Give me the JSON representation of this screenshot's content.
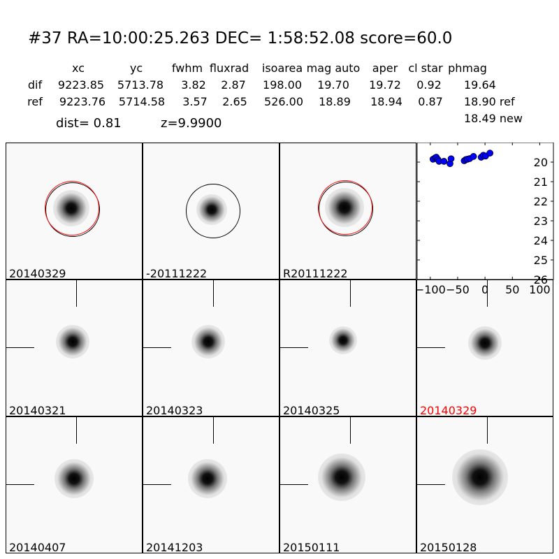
{
  "title": "#37   RA=10:00:25.263 DEC= 1:58:52.08      score=60.0",
  "table": {
    "columns": [
      "xc",
      "yc",
      "fwhm",
      "fluxrad",
      "isoarea",
      "mag auto",
      "aper",
      "cl star",
      "phmag"
    ],
    "rows": [
      {
        "label": "dif",
        "values": [
          "9223.85",
          "5713.78",
          "3.82",
          "2.87",
          "198.00",
          "19.70",
          "19.72",
          "0.92",
          "19.64"
        ]
      },
      {
        "label": "ref",
        "values": [
          "9223.76",
          "5714.58",
          "3.57",
          "2.65",
          "526.00",
          "18.89",
          "18.94",
          "0.87",
          "18.90 ref"
        ]
      }
    ],
    "extra": "18.49 new"
  },
  "dist": "dist=  0.81",
  "z": "z=9.9900",
  "stamps": [
    {
      "label": "20140329",
      "color": "#000000"
    },
    {
      "label": "-20111222",
      "color": "#000000"
    },
    {
      "label": "R20111222",
      "color": "#000000"
    },
    {
      "label": "20140321",
      "color": "#000000"
    },
    {
      "label": "20140323",
      "color": "#000000"
    },
    {
      "label": "20140325",
      "color": "#000000"
    },
    {
      "label": "20140329",
      "color": "#ff0000"
    },
    {
      "label": "20140407",
      "color": "#000000"
    },
    {
      "label": "20141203",
      "color": "#000000"
    },
    {
      "label": "20150111",
      "color": "#000000"
    },
    {
      "label": "20150128",
      "color": "#000000"
    }
  ],
  "chart_data": {
    "type": "scatter",
    "xlim": [
      -124,
      125
    ],
    "ylim": [
      26,
      19
    ],
    "y_inverted": true,
    "xticks": [
      -100,
      -50,
      0,
      50,
      100
    ],
    "yticks": [
      20,
      21,
      22,
      23,
      24,
      25,
      26
    ],
    "marker_color": "#0000ff",
    "points": [
      [
        -95,
        19.85
      ],
      [
        -91,
        19.78
      ],
      [
        -89,
        19.75
      ],
      [
        -86,
        19.87
      ],
      [
        -84,
        19.96
      ],
      [
        -75,
        19.96
      ],
      [
        -64,
        20.08
      ],
      [
        -62,
        19.83
      ],
      [
        -38,
        19.93
      ],
      [
        -35,
        19.87
      ],
      [
        -32,
        19.85
      ],
      [
        -28,
        19.82
      ],
      [
        -21,
        19.71
      ],
      [
        -7,
        19.75
      ],
      [
        -3,
        19.65
      ],
      [
        1,
        19.69
      ],
      [
        9,
        19.54
      ]
    ]
  }
}
